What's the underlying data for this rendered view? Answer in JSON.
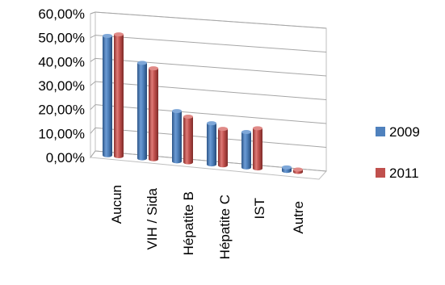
{
  "chart_data": {
    "type": "bar",
    "style": "3d-cylinder",
    "categories": [
      "Aucun",
      "VIH / Sida",
      "Hépatite B",
      "Hépatite C",
      "IST",
      "Autre"
    ],
    "series": [
      {
        "name": "2009",
        "color": "#4F81BD",
        "values": [
          51.5,
          41.0,
          21.5,
          17.5,
          15.0,
          1.5
        ]
      },
      {
        "name": "2011",
        "color": "#C0504D",
        "values": [
          52.5,
          39.0,
          19.5,
          15.5,
          17.0,
          1.0
        ]
      }
    ],
    "y_ticks": [
      "0,00%",
      "10,00%",
      "20,00%",
      "30,00%",
      "40,00%",
      "50,00%",
      "60,00%"
    ],
    "ylim": [
      0,
      60
    ],
    "grid": true,
    "legend_position": "right"
  }
}
